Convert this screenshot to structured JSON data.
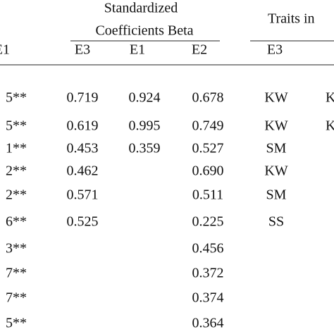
{
  "header": {
    "group1": [
      "Standardized",
      "Coefficients Beta"
    ],
    "group2": "Traits in"
  },
  "table": {
    "columns": [
      "E1",
      "E3",
      "E1",
      "E2",
      "E3",
      null
    ],
    "rows": [
      [
        "5**",
        "0.719",
        "0.924",
        "0.678",
        "KW",
        "K"
      ],
      [
        "5**",
        "0.619",
        "0.995",
        "0.749",
        "KW",
        "K"
      ],
      [
        "1**",
        "0.453",
        "0.359",
        "0.527",
        "SM",
        null
      ],
      [
        "2**",
        "0.462",
        null,
        "0.690",
        "KW",
        null
      ],
      [
        "2**",
        "0.571",
        null,
        "0.511",
        "SM",
        null
      ],
      [
        "6**",
        "0.525",
        null,
        "0.225",
        "SS",
        null
      ],
      [
        "3**",
        null,
        null,
        "0.456",
        null,
        null
      ],
      [
        "7**",
        null,
        null,
        "0.372",
        null,
        null
      ],
      [
        "7**",
        null,
        null,
        "0.374",
        null,
        null
      ],
      [
        "5**",
        null,
        null,
        "0.364",
        null,
        null
      ]
    ]
  }
}
